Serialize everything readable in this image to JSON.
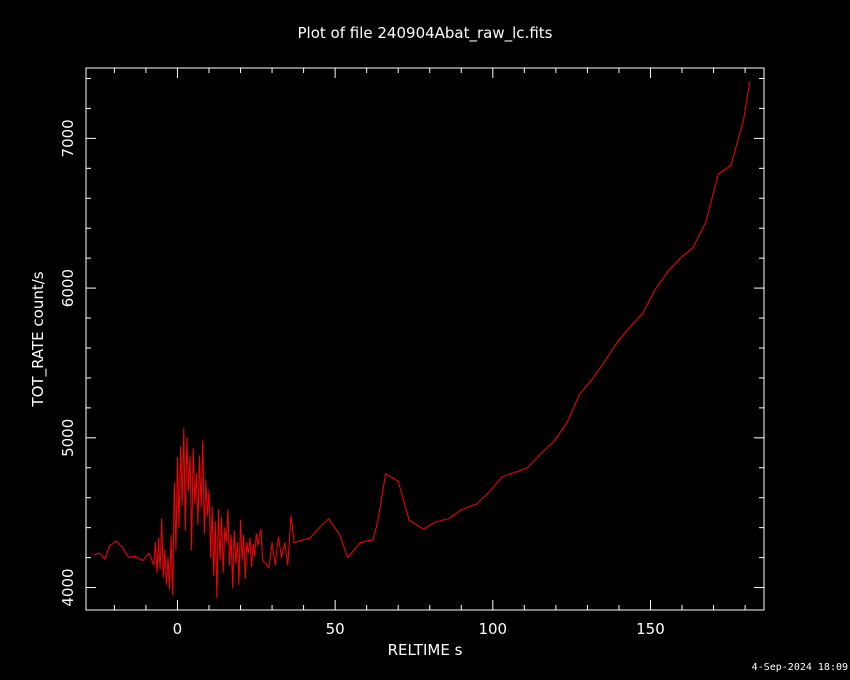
{
  "chart_data": {
    "type": "line",
    "title": "Plot of file 240904Abat_raw_lc.fits",
    "xlabel": "RELTIME  s",
    "ylabel": "TOT_RATE  count/s",
    "xlim": [
      -29,
      186
    ],
    "ylim": [
      3850,
      7470
    ],
    "x_ticks": [
      0,
      50,
      100,
      150
    ],
    "y_ticks": [
      4000,
      5000,
      6000,
      7000
    ],
    "x_tick_labels": [
      "0",
      "50",
      "100",
      "150"
    ],
    "y_tick_labels": [
      "4000",
      "5000",
      "6000",
      "7000"
    ],
    "grid": false,
    "legend": "none",
    "series": [
      {
        "color": "#ff0000",
        "x": [
          -26.5,
          -24.8,
          -23.0,
          -21.5,
          -19.5,
          -17.5,
          -15.5,
          -13.5,
          -11.0,
          -9.0,
          -7.5,
          -7.0,
          -6.5,
          -6.0,
          -5.5,
          -5.0,
          -4.5,
          -4.0,
          -3.5,
          -3.0,
          -2.5,
          -2.0,
          -1.5,
          -1.0,
          -0.5,
          0.0,
          0.5,
          1.0,
          1.5,
          2.0,
          2.5,
          3.0,
          3.5,
          4.0,
          4.5,
          5.0,
          5.5,
          6.0,
          6.5,
          7.0,
          7.5,
          8.0,
          8.5,
          9.0,
          9.5,
          10.0,
          10.5,
          11.0,
          11.5,
          12.0,
          12.5,
          13.0,
          13.5,
          14.0,
          14.5,
          15.0,
          15.5,
          16.0,
          16.5,
          17.0,
          17.5,
          18.0,
          18.5,
          19.0,
          19.5,
          20.0,
          20.5,
          21.0,
          21.5,
          22.0,
          22.5,
          23.0,
          23.5,
          24.0,
          24.5,
          25.0,
          25.5,
          26.0,
          26.5,
          27.0,
          28.0,
          29.0,
          30.0,
          31.0,
          32.0,
          33.0,
          34.0,
          35.0,
          36.0,
          37.0,
          40.0,
          42.0,
          45.0,
          48.0,
          51.5,
          54.0,
          58.0,
          62.0,
          63.5,
          66.0,
          70.0,
          73.5,
          78.0,
          82.0,
          86.0,
          90.0,
          95.0,
          99.0,
          103.0,
          107.0,
          111.0,
          115.5,
          119.5,
          123.5,
          127.5,
          131.5,
          135.5,
          139.5,
          143.5,
          147.5,
          151.5,
          155.5,
          159.5,
          163.5,
          167.5,
          171.5,
          175.5,
          179.5,
          181.5
        ],
        "values": [
          4220,
          4230,
          4190,
          4280,
          4310,
          4270,
          4200,
          4210,
          4180,
          4230,
          4150,
          4300,
          4100,
          4330,
          4120,
          4460,
          4070,
          4250,
          4020,
          4200,
          3990,
          4350,
          3950,
          4700,
          4250,
          4870,
          4400,
          4940,
          4550,
          5060,
          4380,
          5000,
          4650,
          4880,
          4250,
          4930,
          4560,
          4760,
          4420,
          4880,
          4530,
          4980,
          4360,
          4720,
          4480,
          4650,
          4200,
          4540,
          4080,
          4440,
          3930,
          4520,
          4180,
          4470,
          4100,
          4400,
          4300,
          4520,
          4150,
          4350,
          4000,
          4380,
          4160,
          4300,
          4020,
          4450,
          4180,
          4350,
          4060,
          4300,
          4230,
          4330,
          4140,
          4290,
          4210,
          4360,
          4280,
          4350,
          4390,
          4180,
          4160,
          4130,
          4300,
          4150,
          4340,
          4200,
          4300,
          4150,
          4480,
          4300,
          4320,
          4330,
          4400,
          4460,
          4350,
          4200,
          4300,
          4320,
          4440,
          4760,
          4710,
          4450,
          4390,
          4440,
          4460,
          4520,
          4560,
          4640,
          4740,
          4770,
          4800,
          4900,
          4980,
          5100,
          5290,
          5390,
          5510,
          5640,
          5740,
          5830,
          5990,
          6110,
          6200,
          6270,
          6440,
          6760,
          6820,
          7120,
          7380
        ]
      }
    ]
  },
  "footer": {
    "timestamp": "4-Sep-2024 18:09"
  }
}
